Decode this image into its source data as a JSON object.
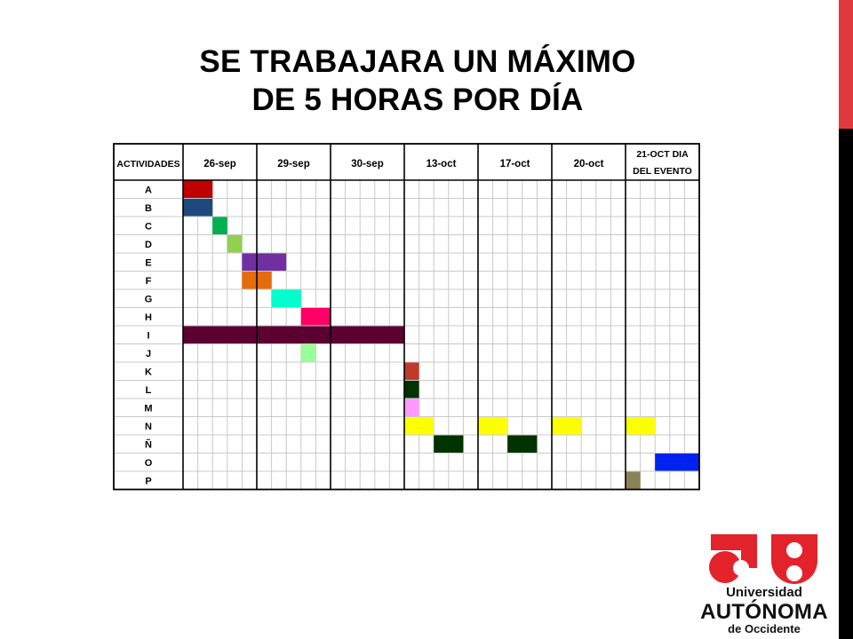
{
  "slide": {
    "title_line1": "SE TRABAJARA UN MÁXIMO",
    "title_line2": "DE 5 HORAS POR DÍA"
  },
  "logo": {
    "line1": "Universidad",
    "line2": "AUTÓNOMA",
    "line3": "de Occidente",
    "color": "#e3232b"
  },
  "theme": {
    "accent": "#e13a3e",
    "sidebar": "#000000"
  },
  "chart_data": {
    "type": "table",
    "row_header": "ACTIVIDADES",
    "columns": [
      {
        "label": "26-sep",
        "slots": 5
      },
      {
        "label": "29-sep",
        "slots": 5
      },
      {
        "label": "30-sep",
        "slots": 5
      },
      {
        "label": "13-oct",
        "slots": 5
      },
      {
        "label": "17-oct",
        "slots": 5
      },
      {
        "label": "20-oct",
        "slots": 5
      },
      {
        "label": "21-OCT DIA DEL EVENTO",
        "slots": 5
      }
    ],
    "rows": [
      "A",
      "B",
      "C",
      "D",
      "E",
      "F",
      "G",
      "H",
      "I",
      "J",
      "K",
      "L",
      "M",
      "N",
      "Ñ",
      "O",
      "P"
    ],
    "bars": [
      {
        "row": "A",
        "start": 0,
        "span": 2,
        "color": "#c00000"
      },
      {
        "row": "B",
        "start": 0,
        "span": 2,
        "color": "#1f497d"
      },
      {
        "row": "C",
        "start": 2,
        "span": 1,
        "color": "#00b050"
      },
      {
        "row": "D",
        "start": 3,
        "span": 1,
        "color": "#92d050"
      },
      {
        "row": "E",
        "start": 4,
        "span": 3,
        "color": "#7030a0"
      },
      {
        "row": "F",
        "start": 4,
        "span": 2,
        "color": "#e46c0a"
      },
      {
        "row": "G",
        "start": 6,
        "span": 2,
        "color": "#00ffcc"
      },
      {
        "row": "H",
        "start": 8,
        "span": 2,
        "color": "#ff0066"
      },
      {
        "row": "I",
        "start": 0,
        "span": 15,
        "color": "#5c0032"
      },
      {
        "row": "J",
        "start": 8,
        "span": 1,
        "color": "#99ff99"
      },
      {
        "row": "K",
        "start": 15,
        "span": 1,
        "color": "#c0392b"
      },
      {
        "row": "L",
        "start": 15,
        "span": 1,
        "color": "#003300"
      },
      {
        "row": "M",
        "start": 15,
        "span": 1,
        "color": "#ff99ff"
      },
      {
        "row": "N",
        "start": 15,
        "span": 2,
        "color": "#ffff00"
      },
      {
        "row": "N",
        "start": 20,
        "span": 2,
        "color": "#ffff00"
      },
      {
        "row": "N",
        "start": 25,
        "span": 2,
        "color": "#ffff00"
      },
      {
        "row": "N",
        "start": 30,
        "span": 2,
        "color": "#ffff00"
      },
      {
        "row": "Ñ",
        "start": 17,
        "span": 2,
        "color": "#003300"
      },
      {
        "row": "Ñ",
        "start": 22,
        "span": 2,
        "color": "#003300"
      },
      {
        "row": "O",
        "start": 32,
        "span": 3,
        "color": "#0022ee"
      },
      {
        "row": "P",
        "start": 30,
        "span": 1,
        "color": "#8b8256"
      }
    ]
  }
}
